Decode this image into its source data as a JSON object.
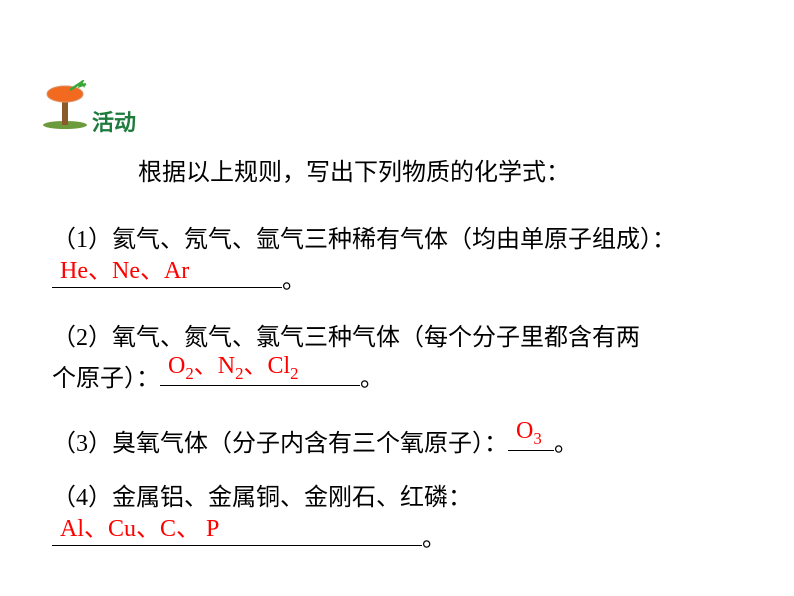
{
  "activity": {
    "label": "活动",
    "icon_colors": {
      "tree_trunk": "#8b5a2b",
      "tree_canopy": "#f16a1f",
      "arrow": "#3aa63a",
      "ground": "#6c9b3e"
    },
    "label_color": "#1e7b3e"
  },
  "intro": "根据以上规则，写出下列物质的化学式：",
  "q1": {
    "text": "（1）氦气、氖气、氩气三种稀有气体（均由单原子组成）：",
    "answer": "He、Ne、Ar",
    "tail": "。",
    "underline_width": 230
  },
  "q2": {
    "text_a": "（2）氧气、氮气、氯气三种气体（每个分子里都含有两",
    "text_b_pre": "个原子）：",
    "answer_html": "O<sub>2</sub>、N<sub>2</sub>、Cl<sub>2</sub>",
    "tail": "。",
    "underline_width": 200
  },
  "q3": {
    "text_pre": "（3）臭氧气体（分子内含有三个氧原子）：",
    "answer_html": "O<sub>3</sub>",
    "tail": "。",
    "underline_width": 46
  },
  "q4": {
    "text": "（4）金属铝、金属铜、金刚石、红磷：",
    "answer": "Al、Cu、C、 P",
    "tail": "。",
    "underline_width": 370
  },
  "answer_color": "#ff0000",
  "text_color": "#000000",
  "background": "#ffffff",
  "font_size": 24
}
